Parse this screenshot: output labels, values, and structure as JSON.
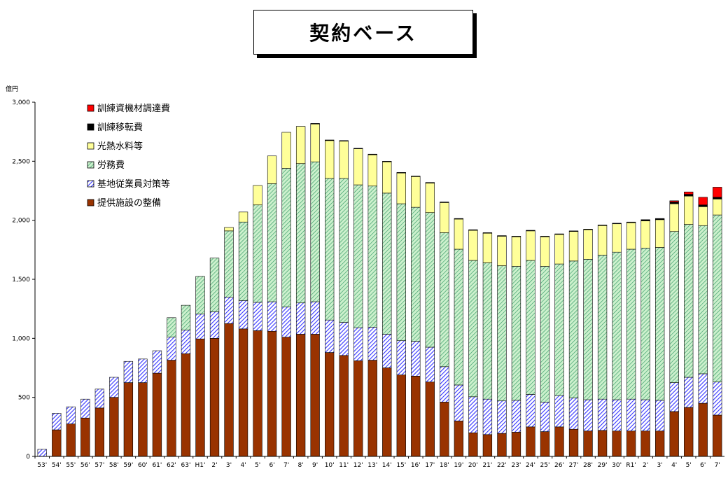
{
  "title": "契約ベース",
  "chart_data": {
    "type": "bar",
    "stacked": true,
    "ylabel": "億円",
    "ylim": [
      0,
      3000
    ],
    "yticks": [
      "0",
      "500",
      "1,000",
      "1,500",
      "2,000",
      "2,500",
      "3,000"
    ],
    "categories": [
      "53'",
      "54'",
      "55'",
      "56'",
      "57'",
      "58'",
      "59'",
      "60'",
      "61'",
      "62'",
      "63'",
      "H1'",
      "2'",
      "3'",
      "4'",
      "5'",
      "6'",
      "7'",
      "8'",
      "9'",
      "10'",
      "11'",
      "12'",
      "13'",
      "14'",
      "15'",
      "16'",
      "17'",
      "18'",
      "19'",
      "20'",
      "21'",
      "22'",
      "23'",
      "24'",
      "25'",
      "26'",
      "27'",
      "28'",
      "29'",
      "30'",
      "R1'",
      "2'",
      "3'",
      "4'",
      "5'",
      "6'",
      "7'"
    ],
    "series": [
      {
        "name": "提供施設の整備",
        "color": "#993300",
        "pattern": "solid",
        "values": [
          0,
          225,
          275,
          325,
          410,
          500,
          625,
          625,
          705,
          815,
          870,
          995,
          1000,
          1125,
          1080,
          1065,
          1060,
          1010,
          1035,
          1035,
          880,
          855,
          810,
          815,
          750,
          690,
          680,
          630,
          460,
          300,
          200,
          185,
          195,
          205,
          250,
          210,
          250,
          230,
          215,
          220,
          215,
          215,
          215,
          215,
          380,
          415,
          450,
          350
        ]
      },
      {
        "name": "基地従業員対策等",
        "color": "#3333ff",
        "pattern": "hatch",
        "values": [
          60,
          140,
          145,
          160,
          160,
          170,
          180,
          200,
          190,
          195,
          200,
          210,
          225,
          225,
          240,
          240,
          250,
          255,
          265,
          275,
          275,
          280,
          280,
          280,
          285,
          290,
          295,
          295,
          300,
          305,
          305,
          300,
          275,
          270,
          275,
          250,
          265,
          265,
          265,
          265,
          265,
          270,
          265,
          260,
          245,
          255,
          250,
          280
        ]
      },
      {
        "name": "労務費",
        "color": "#33aa66",
        "pattern": "hatch",
        "values": [
          0,
          0,
          0,
          0,
          0,
          0,
          0,
          0,
          0,
          165,
          210,
          320,
          455,
          560,
          665,
          825,
          1000,
          1175,
          1180,
          1185,
          1200,
          1220,
          1210,
          1195,
          1195,
          1160,
          1135,
          1140,
          1135,
          1150,
          1155,
          1155,
          1145,
          1135,
          1135,
          1150,
          1115,
          1160,
          1190,
          1220,
          1250,
          1270,
          1285,
          1295,
          1280,
          1295,
          1255,
          1415
        ]
      },
      {
        "name": "光熱水料等",
        "color": "#ffff99",
        "pattern": "solid",
        "values": [
          0,
          0,
          0,
          0,
          0,
          0,
          0,
          0,
          0,
          0,
          0,
          0,
          0,
          30,
          85,
          165,
          235,
          305,
          315,
          320,
          320,
          315,
          305,
          265,
          265,
          260,
          260,
          250,
          255,
          255,
          255,
          250,
          250,
          250,
          250,
          250,
          250,
          250,
          250,
          250,
          240,
          225,
          230,
          235,
          235,
          240,
          160,
          135
        ]
      },
      {
        "name": "訓練移転費",
        "color": "#000000",
        "pattern": "solid",
        "values": [
          0,
          0,
          0,
          0,
          0,
          0,
          0,
          0,
          0,
          0,
          0,
          0,
          0,
          0,
          0,
          0,
          0,
          0,
          0,
          5,
          5,
          5,
          5,
          5,
          5,
          5,
          5,
          5,
          5,
          5,
          5,
          5,
          5,
          5,
          5,
          5,
          5,
          5,
          5,
          5,
          5,
          5,
          10,
          10,
          15,
          15,
          15,
          15
        ]
      },
      {
        "name": "訓練資機材調達費",
        "color": "#ff0000",
        "pattern": "solid",
        "values": [
          0,
          0,
          0,
          0,
          0,
          0,
          0,
          0,
          0,
          0,
          0,
          0,
          0,
          0,
          0,
          0,
          0,
          0,
          0,
          0,
          0,
          0,
          0,
          0,
          0,
          0,
          0,
          0,
          0,
          0,
          0,
          0,
          0,
          0,
          0,
          0,
          0,
          0,
          0,
          0,
          0,
          0,
          0,
          0,
          10,
          20,
          65,
          85
        ]
      }
    ],
    "legend_position": "top-left",
    "legend_order": [
      "訓練資機材調達費",
      "訓練移転費",
      "光熱水料等",
      "労務費",
      "基地従業員対策等",
      "提供施設の整備"
    ],
    "grid": false
  }
}
